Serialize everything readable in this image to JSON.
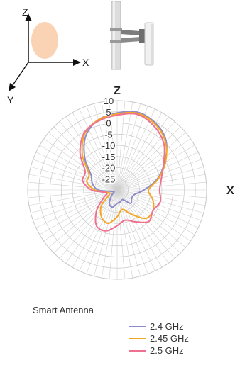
{
  "diagram": {
    "axis_z": "Z",
    "axis_x": "X",
    "axis_y": "Y"
  },
  "chart_data": {
    "type": "polar",
    "title": "",
    "axis_labels": {
      "top": "Z",
      "right": "X"
    },
    "radial_ticks": [
      "10",
      "5",
      "0",
      "-5",
      "-10",
      "-15",
      "-20",
      "-25"
    ],
    "radial_range_db": [
      -30,
      10
    ],
    "angular_grid_deg": 5,
    "grid": true,
    "legend_title": "Smart Antenna",
    "legend_position": "bottom",
    "angles_deg": [
      0,
      15,
      30,
      45,
      60,
      75,
      90,
      105,
      120,
      135,
      150,
      165,
      180,
      195,
      210,
      225,
      240,
      255,
      270,
      285,
      300,
      315,
      330,
      345
    ],
    "series": [
      {
        "name": "2.4 GHz",
        "color": "#8c8cc8",
        "values_db": [
          4.5,
          6.0,
          4.5,
          1.0,
          -5.5,
          -11.5,
          -18.0,
          -22.0,
          -22.5,
          -21.5,
          -25.0,
          -24.5,
          -24.0,
          -22.0,
          -23.0,
          -26.5,
          -28.5,
          -27.5,
          -21.5,
          -18.5,
          -16.5,
          -9.5,
          -2.0,
          2.5
        ]
      },
      {
        "name": "2.45 GHz",
        "color": "#f5a623",
        "values_db": [
          4.0,
          5.5,
          4.0,
          0.5,
          -5.0,
          -11.0,
          -16.0,
          -13.5,
          -11.5,
          -12.0,
          -17.5,
          -21.0,
          -18.0,
          -14.5,
          -16.0,
          -20.0,
          -26.0,
          -25.5,
          -20.0,
          -16.0,
          -15.5,
          -8.0,
          -1.0,
          2.5
        ]
      },
      {
        "name": "2.5 GHz",
        "color": "#f07090",
        "values_db": [
          3.5,
          5.0,
          3.0,
          -0.5,
          -6.0,
          -9.5,
          -11.0,
          -10.0,
          -11.5,
          -10.0,
          -13.5,
          -16.0,
          -14.0,
          -11.0,
          -11.5,
          -17.0,
          -23.0,
          -25.0,
          -18.5,
          -14.0,
          -13.5,
          -6.5,
          -0.5,
          2.0
        ]
      }
    ]
  }
}
